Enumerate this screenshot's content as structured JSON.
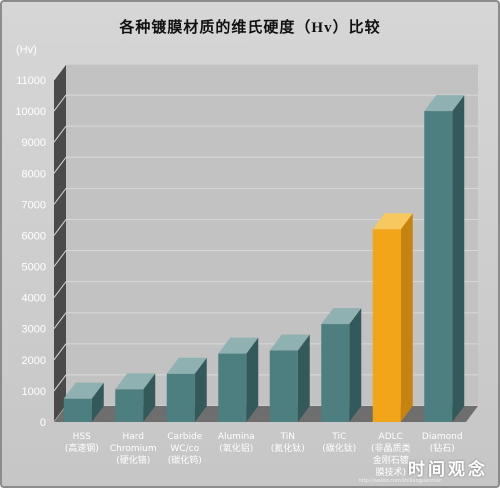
{
  "chart_data": {
    "type": "bar",
    "title": "各种镀膜材质的维氏硬度（Hv）比较",
    "ylabel": "(Hv)",
    "ylim": [
      0,
      11000
    ],
    "yticks": [
      0,
      1000,
      2000,
      3000,
      4000,
      5000,
      6000,
      7000,
      8000,
      9000,
      10000,
      11000
    ],
    "categories": [
      [
        "HSS",
        "(高速钢)"
      ],
      [
        "Hard",
        "Chromium",
        "(硬化铬)"
      ],
      [
        "Carbide",
        "WC/co",
        "(碳化钨)"
      ],
      [
        "Alumina",
        "(氧化铝)"
      ],
      [
        "TiN",
        "(氮化钛)"
      ],
      [
        "TiC",
        "(碳化钛)"
      ],
      [
        "ADLC",
        "(非晶质类",
        "金刚石镀",
        "膜技术)"
      ],
      [
        "Diamond",
        "(钻石)"
      ]
    ],
    "values": [
      750,
      1050,
      1550,
      2200,
      2300,
      3150,
      6200,
      10000
    ],
    "colors": {
      "bar": "#4d7f80",
      "bar_side": "#34595a",
      "bar_top": "#8fb1b1",
      "highlight": "#f3a519",
      "highlight_side": "#c7830f",
      "highlight_top": "#f7c85f",
      "highlight_index": 6
    },
    "grid": true
  },
  "watermark": "时间观念",
  "watermark_url": "http://weibo.com/shijianguannian"
}
